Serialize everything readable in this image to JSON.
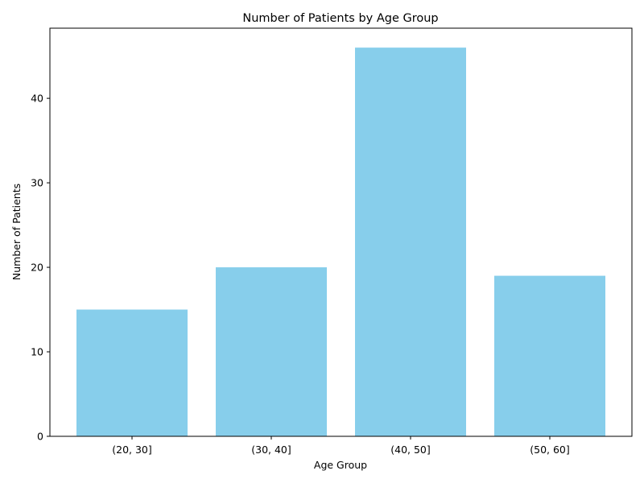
{
  "chart_data": {
    "type": "bar",
    "title": "Number of Patients by Age Group",
    "xlabel": "Age Group",
    "ylabel": "Number of Patients",
    "categories": [
      "(20, 30]",
      "(30, 40]",
      "(40, 50]",
      "(50, 60]"
    ],
    "values": [
      15,
      20,
      46,
      19
    ],
    "ylim": [
      0,
      48.3
    ],
    "yticks": [
      0,
      10,
      20,
      30,
      40
    ],
    "bar_color": "#87CEEB",
    "grid": false,
    "legend": "none"
  }
}
